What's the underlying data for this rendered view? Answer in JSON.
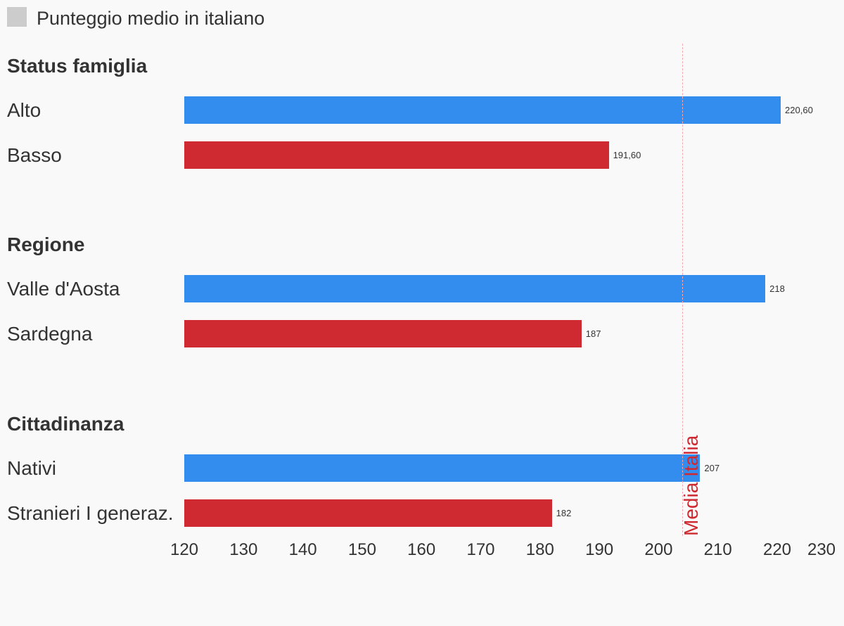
{
  "legend": {
    "label": "Punteggio medio in italiano",
    "color": "#cccccc"
  },
  "chart_data": {
    "type": "bar",
    "orientation": "horizontal",
    "xlim": [
      120,
      230
    ],
    "ticks": [
      120,
      130,
      140,
      150,
      160,
      170,
      180,
      190,
      200,
      210,
      220,
      230
    ],
    "reference_line": {
      "value": 204,
      "label": "Media Italia",
      "color": "#cf2a31"
    },
    "groups": [
      {
        "title": "Status famiglia",
        "bars": [
          {
            "label": "Alto",
            "value": 220.6,
            "display": "220,60",
            "color": "#338def"
          },
          {
            "label": "Basso",
            "value": 191.6,
            "display": "191,60",
            "color": "#cf2a31"
          }
        ]
      },
      {
        "title": "Regione",
        "bars": [
          {
            "label": "Valle d'Aosta",
            "value": 218,
            "display": "218",
            "color": "#338def"
          },
          {
            "label": "Sardegna",
            "value": 187,
            "display": "187",
            "color": "#cf2a31"
          }
        ]
      },
      {
        "title": "Cittadinanza",
        "bars": [
          {
            "label": "Nativi",
            "value": 207,
            "display": "207",
            "color": "#338def"
          },
          {
            "label": "Stranieri I generaz.",
            "value": 182,
            "display": "182",
            "color": "#cf2a31"
          }
        ]
      }
    ]
  }
}
